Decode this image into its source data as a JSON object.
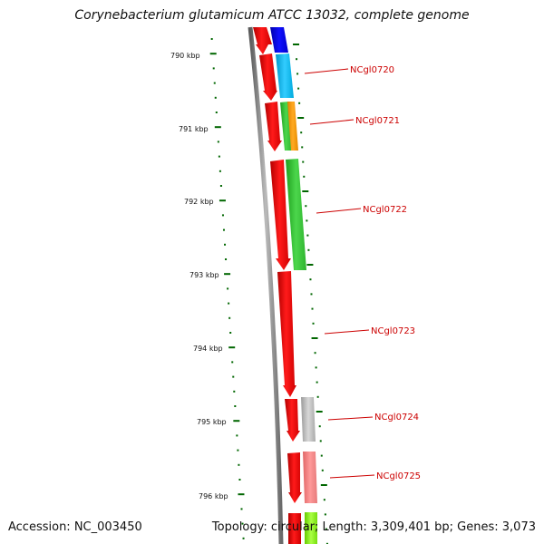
{
  "title": "Corynebacterium glutamicum ATCC 13032, complete genome",
  "accession": "Accession: NC_003450",
  "topology": "Topology: circular; Length: 3,309,401 bp; Genes: 3,073",
  "colors": {
    "label_red": "#cc0000",
    "tick_green": "#006600",
    "backbone": "#888888"
  },
  "scale_ticks": [
    {
      "label": "790 kbp"
    },
    {
      "label": "791 kbp"
    },
    {
      "label": "792 kbp"
    },
    {
      "label": "793 kbp"
    },
    {
      "label": "794 kbp"
    },
    {
      "label": "795 kbp"
    },
    {
      "label": "796 kbp"
    }
  ],
  "gene_labels": [
    {
      "text": "NCgl0720"
    },
    {
      "text": "NCgl0721"
    },
    {
      "text": "NCgl0722"
    },
    {
      "text": "NCgl0723"
    },
    {
      "text": "NCgl0724"
    },
    {
      "text": "NCgl0725"
    }
  ]
}
